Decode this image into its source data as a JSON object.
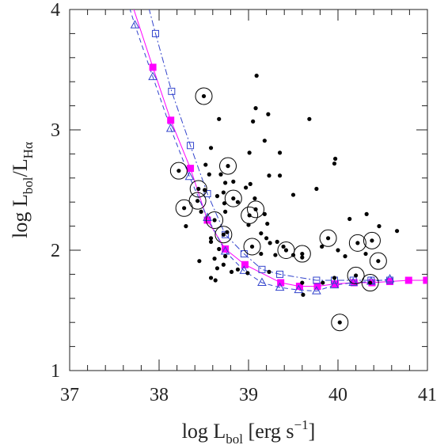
{
  "chart_data": {
    "type": "scatter",
    "xlabel": [
      {
        "text": "log L"
      },
      {
        "text": "bol",
        "script": "sub"
      },
      {
        "text": " [erg s"
      },
      {
        "text": "−1",
        "script": "sup"
      },
      {
        "text": "]"
      }
    ],
    "ylabel": [
      {
        "text": "log L"
      },
      {
        "text": "bol",
        "script": "sub"
      },
      {
        "text": "/L"
      },
      {
        "text": "Hα",
        "script": "sub"
      }
    ],
    "xlim": [
      37,
      41
    ],
    "ylim": [
      1,
      4
    ],
    "xticks": [
      37,
      38,
      39,
      40,
      41
    ],
    "yticks": [
      1,
      2,
      3,
      4
    ],
    "xticks_minor": [
      37.2,
      37.4,
      37.6,
      37.8,
      38.2,
      38.4,
      38.6,
      38.8,
      39.2,
      39.4,
      39.6,
      39.8,
      40.2,
      40.4,
      40.6,
      40.8
    ],
    "yticks_minor": [
      1.2,
      1.4,
      1.6,
      1.8,
      2.2,
      2.4,
      2.6,
      2.8,
      3.2,
      3.4,
      3.6,
      3.8
    ],
    "points": [
      {
        "circled": false,
        "color": "#000000",
        "x": [
          39.09,
          39.08,
          39.22,
          38.67,
          39.05,
          39.68,
          39.18,
          38.58,
          39.01,
          39.35,
          39.97,
          39.96,
          38.52,
          38.56,
          38.69,
          39.23,
          39.35,
          38.74,
          38.83,
          39.02,
          38.51,
          38.97,
          39.76,
          38.72,
          38.65,
          39.5,
          39.07,
          38.73,
          38.88,
          38.74,
          39.18,
          38.47,
          39.21,
          38.3,
          39.0,
          40.32,
          40.46,
          40.66,
          40.13,
          38.76,
          39.14,
          39.2,
          38.58,
          38.58,
          38.67,
          39.24,
          39.32,
          39.39,
          39.14,
          39.5,
          39.3,
          39.6,
          39.82,
          40.0,
          40.08,
          40.31,
          38.45,
          38.74,
          38.62,
          38.72,
          38.88,
          38.81,
          38.99,
          39.23,
          38.65,
          38.58,
          38.63,
          39.6,
          39.83,
          39.96,
          39.61
        ],
        "y": [
          3.45,
          3.18,
          3.13,
          3.09,
          3.07,
          3.09,
          2.91,
          2.85,
          2.81,
          2.81,
          2.76,
          2.72,
          2.71,
          2.63,
          2.63,
          2.62,
          2.62,
          2.56,
          2.57,
          2.55,
          2.5,
          2.52,
          2.51,
          2.48,
          2.45,
          2.46,
          2.43,
          2.39,
          2.4,
          2.32,
          2.3,
          2.32,
          2.22,
          2.2,
          2.21,
          2.3,
          2.2,
          2.16,
          2.26,
          2.15,
          2.14,
          2.1,
          2.1,
          2.07,
          2.01,
          2.06,
          2.07,
          2.03,
          1.97,
          1.96,
          1.96,
          1.94,
          2.03,
          2.0,
          1.95,
          1.97,
          1.91,
          1.95,
          1.93,
          1.88,
          1.84,
          1.82,
          1.81,
          1.82,
          1.85,
          1.77,
          1.75,
          1.73,
          1.73,
          1.77,
          1.63
        ]
      },
      {
        "circled": true,
        "color": "#000000",
        "x": [
          38.5,
          38.77,
          38.22,
          38.44,
          38.83,
          38.28,
          38.43,
          39.08,
          39.01,
          38.62,
          38.72,
          39.89,
          40.22,
          40.38,
          39.04,
          39.42,
          39.6,
          40.45,
          40.2,
          40.02,
          40.36
        ],
        "y": [
          3.28,
          2.7,
          2.66,
          2.51,
          2.43,
          2.35,
          2.41,
          2.34,
          2.29,
          2.25,
          2.13,
          2.1,
          2.06,
          2.08,
          2.03,
          2.0,
          1.97,
          1.91,
          1.79,
          1.4,
          1.73
        ]
      }
    ],
    "models": [
      {
        "marker": "filled-square",
        "color": "#ff00ff",
        "dash": "solid",
        "x": [
          37.93,
          38.13,
          38.35,
          38.54,
          38.74,
          38.96,
          39.36,
          39.57,
          39.77,
          39.97,
          40.18,
          40.38,
          40.58,
          40.79,
          40.99
        ],
        "y": [
          3.52,
          3.08,
          2.68,
          2.25,
          2.01,
          1.88,
          1.73,
          1.7,
          1.7,
          1.72,
          1.73,
          1.73,
          1.74,
          1.75,
          1.75
        ]
      },
      {
        "marker": "open-square",
        "color": "#3344cc",
        "dash": "dashdot",
        "x": [
          37.96,
          38.14,
          38.35,
          38.54,
          38.74,
          38.95,
          39.15,
          39.35,
          39.76,
          39.96,
          40.17,
          40.37,
          40.58
        ],
        "y": [
          3.8,
          3.32,
          2.87,
          2.47,
          2.13,
          1.97,
          1.84,
          1.8,
          1.75,
          1.75,
          1.75,
          1.75,
          1.75
        ]
      },
      {
        "marker": "open-triangle",
        "color": "#3344cc",
        "dash": "dashed",
        "x": [
          37.73,
          37.93,
          38.13,
          38.34,
          38.54,
          38.74,
          38.95,
          39.15,
          39.35,
          39.56,
          39.76,
          39.96,
          40.17,
          40.37,
          40.58
        ],
        "y": [
          3.87,
          3.44,
          3.01,
          2.61,
          2.27,
          1.99,
          1.83,
          1.73,
          1.69,
          1.67,
          1.66,
          1.71,
          1.73,
          1.74,
          1.76
        ]
      }
    ]
  }
}
